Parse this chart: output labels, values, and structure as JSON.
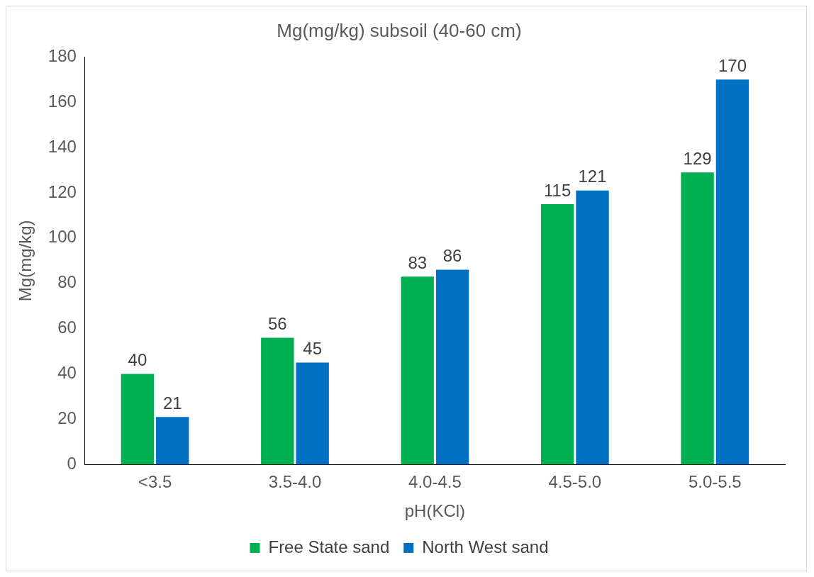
{
  "chart_data": {
    "type": "bar",
    "title": "Mg(mg/kg) subsoil (40-60 cm)",
    "xlabel": "pH(KCl)",
    "ylabel": "Mg(mg/kg)",
    "categories": [
      "<3.5",
      "3.5-4.0",
      "4.0-4.5",
      "4.5-5.0",
      "5.0-5.5"
    ],
    "series": [
      {
        "name": "Free State sand",
        "color": "#00b050",
        "values": [
          40,
          56,
          83,
          115,
          129
        ]
      },
      {
        "name": "North West sand",
        "color": "#0070c0",
        "values": [
          21,
          45,
          86,
          121,
          170
        ]
      }
    ],
    "ylim": [
      0,
      180
    ],
    "yticks": [
      0,
      20,
      40,
      60,
      80,
      100,
      120,
      140,
      160,
      180
    ],
    "grid": false,
    "legend": "bottom",
    "data_labels": true
  }
}
